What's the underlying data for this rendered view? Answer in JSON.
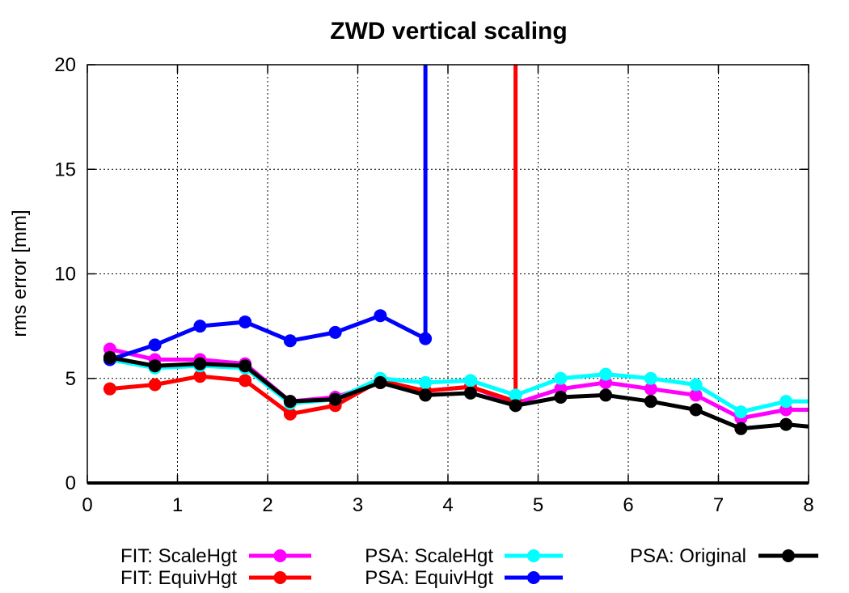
{
  "chart_data": {
    "type": "line",
    "title": "ZWD vertical scaling",
    "xlabel": "",
    "ylabel": "rms error [mm]",
    "xlim": [
      0,
      8
    ],
    "ylim": [
      0,
      20
    ],
    "xticks": [
      "0",
      "1",
      "2",
      "3",
      "4",
      "5",
      "6",
      "7",
      "8"
    ],
    "yticks": [
      "0",
      "5",
      "10",
      "15",
      "20"
    ],
    "grid": true,
    "legend_position": "bottom",
    "series": [
      {
        "name": "FIT: ScaleHgt",
        "color": "#ff00ff",
        "x": [
          0.25,
          0.75,
          1.25,
          1.75,
          2.25,
          2.75,
          3.25,
          3.75,
          4.25,
          4.75,
          5.25,
          5.75,
          6.25,
          6.75,
          7.25,
          7.75,
          8.0
        ],
        "y": [
          6.4,
          5.9,
          5.9,
          5.7,
          3.9,
          4.1,
          4.8,
          4.4,
          4.6,
          3.8,
          4.5,
          4.8,
          4.5,
          4.2,
          3.1,
          3.5,
          3.5
        ]
      },
      {
        "name": "FIT: EquivHgt",
        "color": "#ff0000",
        "x": [
          0.25,
          0.75,
          1.25,
          1.75,
          2.25,
          2.75,
          3.25,
          3.75,
          4.25,
          4.75,
          4.75
        ],
        "y": [
          4.5,
          4.7,
          5.1,
          4.9,
          3.3,
          3.7,
          4.9,
          4.4,
          4.6,
          3.9,
          20
        ],
        "overflow_after": 4.75
      },
      {
        "name": "PSA: ScaleHgt",
        "color": "#00ffff",
        "x": [
          0.25,
          0.75,
          1.25,
          1.75,
          2.25,
          2.75,
          3.25,
          3.75,
          4.25,
          4.75,
          5.25,
          5.75,
          6.25,
          6.75,
          7.25,
          7.75,
          8.0
        ],
        "y": [
          5.9,
          5.5,
          5.6,
          5.5,
          3.8,
          4.0,
          5.0,
          4.8,
          4.9,
          4.2,
          5.0,
          5.2,
          5.0,
          4.7,
          3.4,
          3.9,
          3.9
        ]
      },
      {
        "name": "PSA: EquivHgt",
        "color": "#0000ff",
        "x": [
          0.25,
          0.75,
          1.25,
          1.75,
          2.25,
          2.75,
          3.25,
          3.75,
          3.75
        ],
        "y": [
          5.9,
          6.6,
          7.5,
          7.7,
          6.8,
          7.2,
          8.0,
          6.9,
          20
        ],
        "overflow_after": 3.75
      },
      {
        "name": "PSA: Original",
        "color": "#000000",
        "x": [
          0.25,
          0.75,
          1.25,
          1.75,
          2.25,
          2.75,
          3.25,
          3.75,
          4.25,
          4.75,
          5.25,
          5.75,
          6.25,
          6.75,
          7.25,
          7.75,
          8.0
        ],
        "y": [
          6.0,
          5.6,
          5.7,
          5.6,
          3.9,
          4.0,
          4.8,
          4.2,
          4.3,
          3.7,
          4.1,
          4.2,
          3.9,
          3.5,
          2.6,
          2.8,
          2.7
        ]
      }
    ]
  }
}
